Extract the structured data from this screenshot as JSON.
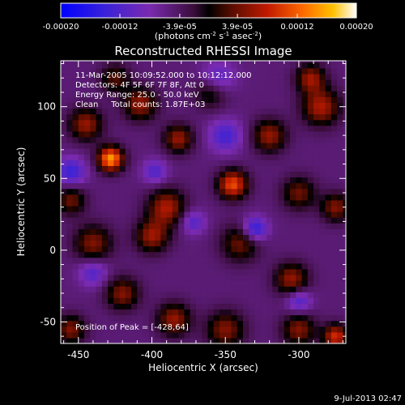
{
  "chart_data": {
    "type": "heatmap",
    "title": "Reconstructed RHESSI Image",
    "xlabel": "Heliocentric X (arcsec)",
    "ylabel": "Heliocentric Y (arcsec)",
    "xlim": [
      -462,
      -268
    ],
    "ylim": [
      -65,
      132
    ],
    "x_ticks": [
      -450,
      -400,
      -350,
      -300
    ],
    "y_ticks": [
      -50,
      0,
      50,
      100
    ],
    "colorbar": {
      "min": -0.0002,
      "max": 0.0002,
      "tick_values": [
        -0.0002,
        -0.00012,
        -3.9e-05,
        3.9e-05,
        0.00012,
        0.0002
      ],
      "tick_labels": [
        "-0.00020",
        "-0.00012",
        "-3.9e-05",
        "3.9e-05",
        "0.00012",
        "0.00020"
      ],
      "label_main": "(photons cm",
      "label_exp1": "-2",
      "label_mid": " s",
      "label_exp2": "-1",
      "label_end": " asec",
      "label_exp3": "-2",
      "label_close": ")"
    },
    "info_lines": [
      "11-Mar-2005 10:09:52.000 to 10:12:12.000",
      "Detectors: 4F 5F 6F 7F 8F, Att 0",
      "Energy Range: 25.0 - 50.0 keV",
      "Clean     Total counts: 1.87E+03"
    ],
    "peak_annotation": "Position of Peak = [-428,64]",
    "peak": [
      -428,
      64
    ],
    "bright_sources": [
      {
        "x": -428,
        "y": 64,
        "amp": 1.0,
        "sigma": 6
      },
      {
        "x": -445,
        "y": 88,
        "amp": 0.55,
        "sigma": 8
      },
      {
        "x": -408,
        "y": 102,
        "amp": 0.55,
        "sigma": 8
      },
      {
        "x": -382,
        "y": 78,
        "amp": 0.55,
        "sigma": 7
      },
      {
        "x": -345,
        "y": 46,
        "amp": 0.8,
        "sigma": 7
      },
      {
        "x": -390,
        "y": 30,
        "amp": 0.6,
        "sigma": 9
      },
      {
        "x": -400,
        "y": 10,
        "amp": 0.55,
        "sigma": 8
      },
      {
        "x": -320,
        "y": 80,
        "amp": 0.55,
        "sigma": 8
      },
      {
        "x": -285,
        "y": 100,
        "amp": 0.6,
        "sigma": 9
      },
      {
        "x": -292,
        "y": 120,
        "amp": 0.55,
        "sigma": 7
      },
      {
        "x": -300,
        "y": 40,
        "amp": 0.45,
        "sigma": 8
      },
      {
        "x": -275,
        "y": 30,
        "amp": 0.5,
        "sigma": 7
      },
      {
        "x": -340,
        "y": 5,
        "amp": 0.45,
        "sigma": 9
      },
      {
        "x": -305,
        "y": -20,
        "amp": 0.55,
        "sigma": 8
      },
      {
        "x": -440,
        "y": 5,
        "amp": 0.5,
        "sigma": 9
      },
      {
        "x": -455,
        "y": 35,
        "amp": 0.45,
        "sigma": 7
      },
      {
        "x": -420,
        "y": -30,
        "amp": 0.5,
        "sigma": 8
      },
      {
        "x": -385,
        "y": -48,
        "amp": 0.55,
        "sigma": 8
      },
      {
        "x": -350,
        "y": -55,
        "amp": 0.5,
        "sigma": 9
      },
      {
        "x": -300,
        "y": -55,
        "amp": 0.5,
        "sigma": 8
      },
      {
        "x": -275,
        "y": -60,
        "amp": 0.7,
        "sigma": 6
      },
      {
        "x": -360,
        "y": 110,
        "amp": 0.35,
        "sigma": 8
      },
      {
        "x": -425,
        "y": 120,
        "amp": 0.4,
        "sigma": 7
      },
      {
        "x": -455,
        "y": -55,
        "amp": 0.5,
        "sigma": 7
      }
    ],
    "dark_sources": [
      {
        "x": -330,
        "y": 15,
        "amp": -0.55,
        "sigma": 6
      },
      {
        "x": -455,
        "y": 55,
        "amp": -0.45,
        "sigma": 7
      },
      {
        "x": -300,
        "y": -35,
        "amp": -0.4,
        "sigma": 6
      },
      {
        "x": -355,
        "y": 120,
        "amp": -0.35,
        "sigma": 8
      },
      {
        "x": -350,
        "y": 80,
        "amp": -0.4,
        "sigma": 8
      },
      {
        "x": -440,
        "y": -15,
        "amp": -0.35,
        "sigma": 7
      },
      {
        "x": -372,
        "y": 20,
        "amp": -0.35,
        "sigma": 6
      },
      {
        "x": -398,
        "y": 55,
        "amp": -0.35,
        "sigma": 6
      }
    ]
  },
  "timestamp": "9-Jul-2013 02:47"
}
